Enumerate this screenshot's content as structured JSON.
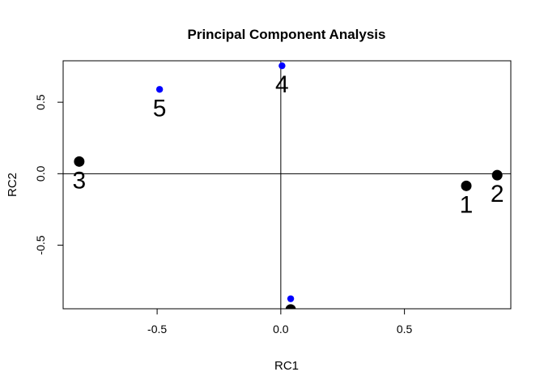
{
  "chart_data": {
    "type": "scatter",
    "title": "Principal Component Analysis",
    "xlabel": "RC1",
    "ylabel": "RC2",
    "xlim": [
      -0.88,
      0.93
    ],
    "ylim": [
      -0.945,
      0.79
    ],
    "x_ticks": [
      -0.5,
      0.0,
      0.5
    ],
    "x_tick_labels": [
      "-0.5",
      "0.0",
      "0.5"
    ],
    "y_ticks": [
      -0.5,
      0.0,
      0.5
    ],
    "y_tick_labels": [
      "-0.5",
      "0.0",
      "0.5"
    ],
    "reference_lines": {
      "x": 0,
      "y": 0
    },
    "grid": false,
    "series": [
      {
        "color": "#000000",
        "marker": "large-filled-circle",
        "points": [
          {
            "label": "1",
            "x": 0.75,
            "y": -0.085
          },
          {
            "label": "2",
            "x": 0.875,
            "y": -0.01
          },
          {
            "label": "3",
            "x": -0.815,
            "y": 0.085
          }
        ]
      },
      {
        "color": "#0000ff",
        "marker": "small-filled-circle",
        "points": [
          {
            "label": "4",
            "x": 0.005,
            "y": 0.755
          },
          {
            "label": "5",
            "x": -0.49,
            "y": 0.59
          },
          {
            "label": "",
            "x": 0.04,
            "y": -0.875
          }
        ]
      }
    ],
    "partial_marker": {
      "color": "#000000",
      "x": 0.04,
      "y": -0.95
    }
  }
}
